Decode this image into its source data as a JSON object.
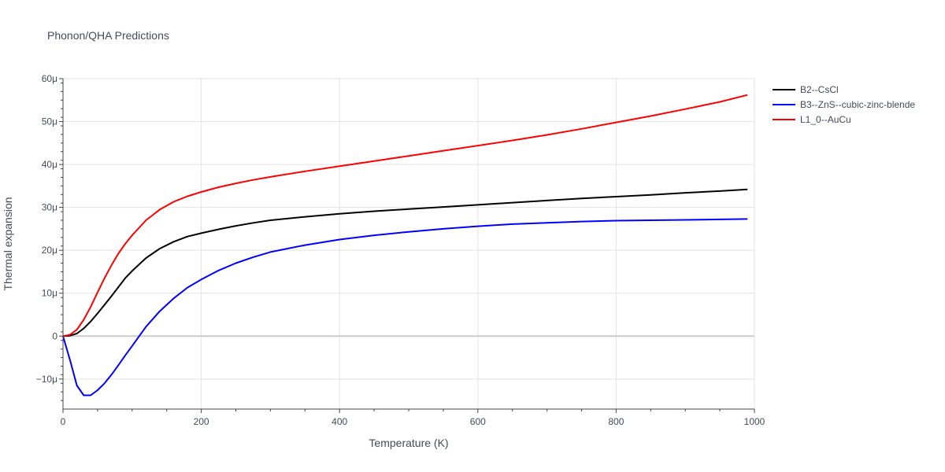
{
  "chart_data": {
    "type": "line",
    "title": "Phonon/QHA Predictions",
    "xlabel": "Temperature (K)",
    "ylabel": "Thermal expansion",
    "xlim": [
      0,
      1000
    ],
    "ylim": [
      -17,
      60
    ],
    "y_unit_suffix": "μ",
    "xticks": [
      0,
      200,
      400,
      600,
      800,
      1000
    ],
    "yticks": [
      -10,
      0,
      10,
      20,
      30,
      40,
      50,
      60
    ],
    "grid": true,
    "legend_position": "top-right",
    "series": [
      {
        "name": "B2--CsCl",
        "color": "#000000",
        "x": [
          0,
          10,
          20,
          30,
          40,
          50,
          60,
          70,
          80,
          90,
          100,
          120,
          140,
          160,
          180,
          200,
          225,
          250,
          275,
          300,
          350,
          400,
          450,
          500,
          550,
          600,
          650,
          700,
          750,
          800,
          850,
          900,
          950,
          990
        ],
        "y": [
          0,
          0.1,
          0.6,
          1.8,
          3.4,
          5.3,
          7.3,
          9.3,
          11.4,
          13.5,
          15.2,
          18.2,
          20.4,
          22.0,
          23.2,
          24.0,
          24.9,
          25.7,
          26.4,
          27.0,
          27.8,
          28.5,
          29.1,
          29.6,
          30.1,
          30.6,
          31.1,
          31.6,
          32.1,
          32.5,
          32.9,
          33.4,
          33.8,
          34.2
        ]
      },
      {
        "name": "B3--ZnS--cubic-zinc-blende",
        "color": "#0000ff",
        "x": [
          0,
          10,
          20,
          30,
          40,
          50,
          60,
          70,
          80,
          90,
          100,
          120,
          140,
          160,
          180,
          200,
          225,
          250,
          275,
          300,
          350,
          400,
          450,
          500,
          550,
          600,
          650,
          700,
          750,
          800,
          850,
          900,
          950,
          990
        ],
        "y": [
          0,
          -5.5,
          -11.5,
          -13.8,
          -13.8,
          -12.6,
          -11.0,
          -9.0,
          -6.8,
          -4.5,
          -2.3,
          2.2,
          5.8,
          8.8,
          11.3,
          13.2,
          15.3,
          17.0,
          18.4,
          19.6,
          21.2,
          22.5,
          23.5,
          24.3,
          25.0,
          25.6,
          26.1,
          26.4,
          26.7,
          26.9,
          27.0,
          27.1,
          27.2,
          27.3
        ]
      },
      {
        "name": "L1_0--AuCu",
        "color": "#ff0000",
        "x": [
          0,
          10,
          20,
          30,
          40,
          50,
          60,
          70,
          80,
          90,
          100,
          120,
          140,
          160,
          180,
          200,
          225,
          250,
          275,
          300,
          350,
          400,
          450,
          500,
          550,
          600,
          650,
          700,
          750,
          800,
          850,
          900,
          950,
          990
        ],
        "y": [
          0,
          0.3,
          1.5,
          3.8,
          6.8,
          10.2,
          13.5,
          16.5,
          19.2,
          21.5,
          23.5,
          27.0,
          29.5,
          31.3,
          32.6,
          33.6,
          34.7,
          35.6,
          36.4,
          37.1,
          38.4,
          39.6,
          40.8,
          42.0,
          43.2,
          44.4,
          45.6,
          46.9,
          48.3,
          49.8,
          51.3,
          52.9,
          54.6,
          56.2
        ]
      }
    ]
  }
}
